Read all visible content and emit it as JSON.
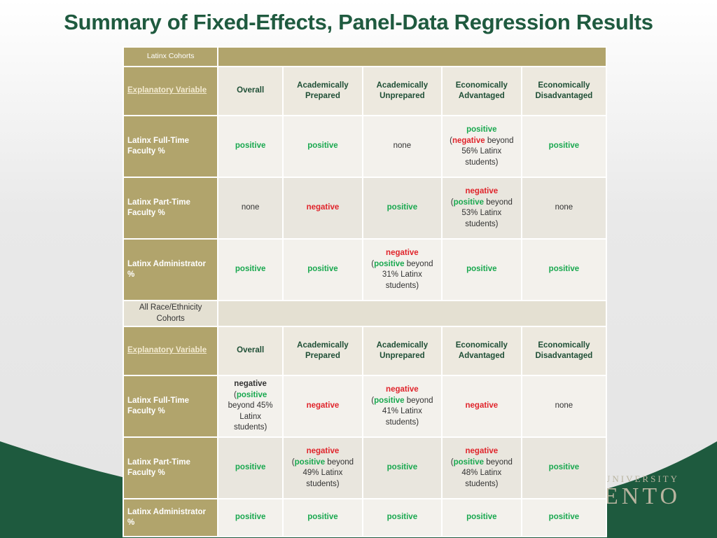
{
  "title": "Summary of Fixed-Effects, Panel-Data Regression Results",
  "logo": {
    "line1": "UNIVERSITY",
    "line2": "ENTO"
  },
  "sections": [
    {
      "label": "Latinx Cohorts",
      "header": [
        "Explanatory Variable",
        "Overall",
        "Academically Prepared",
        "Academically Unprepared",
        "Economically Advantaged",
        "Economically Disadvantaged"
      ],
      "rows": [
        {
          "label": "Latinx Full-Time Faculty %",
          "cells": [
            [
              {
                "text": "positive",
                "color": "#19a84f"
              }
            ],
            [
              {
                "text": "positive",
                "color": "#19a84f"
              }
            ],
            [
              {
                "text": "none",
                "color": "#333333"
              }
            ],
            [
              {
                "text": "positive",
                "color": "#19a84f"
              },
              {
                "text": "(",
                "color": "#333333"
              },
              {
                "text": "negative",
                "color": "#e0242b"
              },
              {
                "text": " beyond 56% Latinx students)",
                "color": "#333333"
              }
            ],
            [
              {
                "text": "positive",
                "color": "#19a84f"
              }
            ]
          ]
        },
        {
          "label": "Latinx Part-Time Faculty %",
          "cells": [
            [
              {
                "text": "none",
                "color": "#333333"
              }
            ],
            [
              {
                "text": "negative",
                "color": "#e0242b"
              }
            ],
            [
              {
                "text": "positive",
                "color": "#19a84f"
              }
            ],
            [
              {
                "text": "negative",
                "color": "#e0242b"
              },
              {
                "text": "(",
                "color": "#333333"
              },
              {
                "text": "positive",
                "color": "#19a84f"
              },
              {
                "text": " beyond 53% Latinx students)",
                "color": "#333333"
              }
            ],
            [
              {
                "text": "none",
                "color": "#333333"
              }
            ]
          ]
        },
        {
          "label": "Latinx Administrator %",
          "cells": [
            [
              {
                "text": "positive",
                "color": "#19a84f"
              }
            ],
            [
              {
                "text": "positive",
                "color": "#19a84f"
              }
            ],
            [
              {
                "text": "negative",
                "color": "#e0242b"
              },
              {
                "text": "(",
                "color": "#333333"
              },
              {
                "text": "positive",
                "color": "#19a84f"
              },
              {
                "text": " beyond 31% Latinx students)",
                "color": "#333333"
              }
            ],
            [
              {
                "text": "positive",
                "color": "#19a84f"
              }
            ],
            [
              {
                "text": "positive",
                "color": "#19a84f"
              }
            ]
          ]
        }
      ]
    },
    {
      "label": "All Race/Ethnicity Cohorts",
      "header": [
        "Explanatory Variable",
        "Overall",
        "Academically Prepared",
        "Academically Unprepared",
        "Economically Advantaged",
        "Economically Disadvantaged"
      ],
      "rows": [
        {
          "label": "Latinx Full-Time Faculty %",
          "cells": [
            [
              {
                "text": "negative",
                "color": "#333333"
              },
              {
                "text": "(",
                "color": "#333333"
              },
              {
                "text": "positive",
                "color": "#19a84f"
              },
              {
                "text": " beyond 45% Latinx students)",
                "color": "#333333"
              }
            ],
            [
              {
                "text": "negative",
                "color": "#e0242b"
              }
            ],
            [
              {
                "text": "negative",
                "color": "#e0242b"
              },
              {
                "text": "(",
                "color": "#333333"
              },
              {
                "text": "positive",
                "color": "#19a84f"
              },
              {
                "text": " beyond 41% Latinx students)",
                "color": "#333333"
              }
            ],
            [
              {
                "text": "negative",
                "color": "#e0242b"
              }
            ],
            [
              {
                "text": "none",
                "color": "#333333"
              }
            ]
          ]
        },
        {
          "label": "Latinx Part-Time Faculty %",
          "cells": [
            [
              {
                "text": "positive",
                "color": "#19a84f"
              }
            ],
            [
              {
                "text": "negative",
                "color": "#e0242b"
              },
              {
                "text": "(",
                "color": "#333333"
              },
              {
                "text": "positive",
                "color": "#19a84f"
              },
              {
                "text": " beyond 49% Latinx students)",
                "color": "#333333"
              }
            ],
            [
              {
                "text": "positive",
                "color": "#19a84f"
              }
            ],
            [
              {
                "text": "negative",
                "color": "#e0242b"
              },
              {
                "text": "(",
                "color": "#333333"
              },
              {
                "text": "positive",
                "color": "#19a84f"
              },
              {
                "text": " beyond 48% Latinx students)",
                "color": "#333333"
              }
            ],
            [
              {
                "text": "positive",
                "color": "#19a84f"
              }
            ]
          ]
        },
        {
          "label": "Latinx Administrator %",
          "cells": [
            [
              {
                "text": "positive",
                "color": "#19a84f"
              }
            ],
            [
              {
                "text": "positive",
                "color": "#19a84f"
              }
            ],
            [
              {
                "text": "positive",
                "color": "#19a84f"
              }
            ],
            [
              {
                "text": "positive",
                "color": "#19a84f"
              }
            ],
            [
              {
                "text": "positive",
                "color": "#19a84f"
              }
            ]
          ]
        }
      ]
    }
  ]
}
